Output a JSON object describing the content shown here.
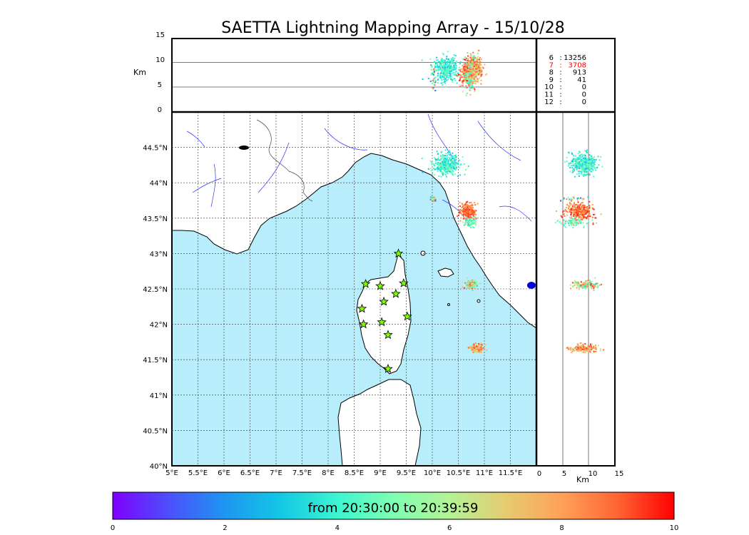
{
  "title": "SAETTA Lightning Mapping Array - 15/10/28",
  "altitude_panel": {
    "ylabel": "Km",
    "ticks": [
      "15",
      "10",
      "5",
      "0"
    ]
  },
  "side_panel": {
    "xlabel": "Km",
    "ticks": [
      "0",
      "5",
      "10",
      "15"
    ]
  },
  "map": {
    "lat_ticks": [
      "44.5°N",
      "44°N",
      "43.5°N",
      "43°N",
      "42.5°N",
      "42°N",
      "41.5°N",
      "41°N",
      "40.5°N",
      "40°N"
    ],
    "lon_ticks": [
      "5°E",
      "5.5°E",
      "6°E",
      "6.5°E",
      "7°E",
      "7.5°E",
      "8°E",
      "8.5°E",
      "9°E",
      "9.5°E",
      "10°E",
      "10.5°E",
      "11°E",
      "11.5°E"
    ],
    "lon_range": [
      5,
      12
    ],
    "lat_range": [
      40,
      45
    ],
    "colors": {
      "sea": "#b8eefc",
      "land": "#ffffff",
      "coast": "#000000",
      "rivers": "#3333ff",
      "station": "#7cfc00"
    }
  },
  "station_counts": [
    {
      "stations": "6",
      "sep": ":",
      "count": "13256",
      "color": "#000000"
    },
    {
      "stations": "7",
      "sep": ":",
      "count": "3708",
      "color": "#ff0000"
    },
    {
      "stations": "8",
      "sep": ":",
      "count": "913",
      "color": "#000000"
    },
    {
      "stations": "9",
      "sep": ":",
      "count": "41",
      "color": "#000000"
    },
    {
      "stations": "10",
      "sep": ":",
      "count": "0",
      "color": "#000000"
    },
    {
      "stations": "11",
      "sep": ":",
      "count": "0",
      "color": "#000000"
    },
    {
      "stations": "12",
      "sep": ":",
      "count": "0",
      "color": "#000000"
    }
  ],
  "stations": [
    {
      "lon": 9.35,
      "lat": 43.0
    },
    {
      "lon": 8.72,
      "lat": 42.57
    },
    {
      "lon": 9.0,
      "lat": 42.54
    },
    {
      "lon": 9.45,
      "lat": 42.58
    },
    {
      "lon": 9.3,
      "lat": 42.43
    },
    {
      "lon": 9.07,
      "lat": 42.32
    },
    {
      "lon": 8.65,
      "lat": 42.22
    },
    {
      "lon": 9.52,
      "lat": 42.11
    },
    {
      "lon": 8.68,
      "lat": 42.0
    },
    {
      "lon": 9.03,
      "lat": 42.03
    },
    {
      "lon": 9.15,
      "lat": 41.85
    },
    {
      "lon": 9.15,
      "lat": 41.37
    }
  ],
  "clusters": [
    {
      "lon": 10.25,
      "lat": 44.27,
      "slon": 0.22,
      "slat": 0.12,
      "n": 380,
      "tmin": 2.8,
      "tmax": 5.2,
      "alt": 9
    },
    {
      "lon": 10.68,
      "lat": 43.6,
      "slon": 0.12,
      "slat": 0.1,
      "n": 300,
      "tmin": 7.6,
      "tmax": 9.8,
      "alt": 8
    },
    {
      "lon": 10.72,
      "lat": 43.45,
      "slon": 0.1,
      "slat": 0.05,
      "n": 80,
      "tmin": 3.5,
      "tmax": 6.0,
      "alt": 7
    },
    {
      "lon": 10.73,
      "lat": 42.57,
      "slon": 0.09,
      "slat": 0.05,
      "n": 160,
      "tmin": 3.0,
      "tmax": 9.5,
      "alt": 9
    },
    {
      "lon": 10.85,
      "lat": 41.67,
      "slon": 0.11,
      "slat": 0.05,
      "n": 160,
      "tmin": 6.0,
      "tmax": 9.5,
      "alt": 9
    },
    {
      "lon": 10.0,
      "lat": 43.78,
      "slon": 0.05,
      "slat": 0.03,
      "n": 30,
      "tmin": 0.5,
      "tmax": 9.0,
      "alt": 7
    }
  ],
  "colorbar": {
    "label": "from 20:30:00 to 20:39:59",
    "ticks": [
      "0",
      "2",
      "4",
      "6",
      "8",
      "10"
    ],
    "stops": [
      "#7f00ff",
      "#4c4ffc",
      "#1e96f1",
      "#12c8e5",
      "#3df5d0",
      "#7ffeb2",
      "#b3f396",
      "#e6cb71",
      "#ffa158",
      "#ff6433",
      "#ff0000"
    ]
  }
}
